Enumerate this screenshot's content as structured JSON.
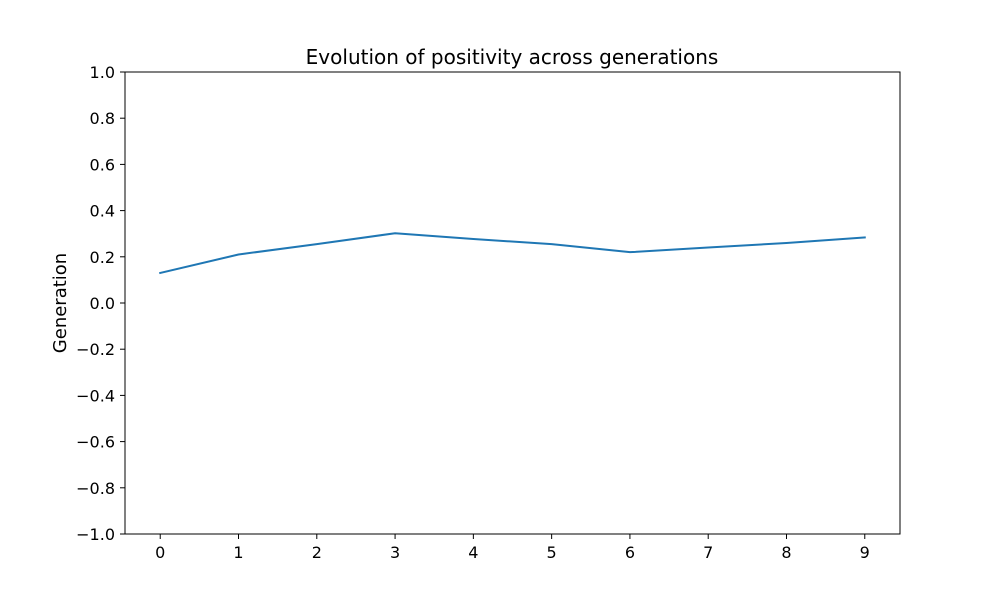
{
  "chart_data": {
    "type": "line",
    "title": "Evolution of positivity across generations",
    "xlabel": "",
    "ylabel": "Generation",
    "x": [
      0,
      1,
      2,
      3,
      4,
      5,
      6,
      7,
      8,
      9
    ],
    "series": [
      {
        "values": [
          0.13,
          0.21,
          0.255,
          0.302,
          0.277,
          0.255,
          0.22,
          0.24,
          0.26,
          0.284
        ],
        "color": "#1f77b4"
      }
    ],
    "xticks": [
      "0",
      "1",
      "2",
      "3",
      "4",
      "5",
      "6",
      "7",
      "8",
      "9"
    ],
    "yticks": [
      -1.0,
      -0.8,
      -0.6,
      -0.4,
      -0.2,
      0.0,
      0.2,
      0.4,
      0.6,
      0.8,
      1.0
    ],
    "ytick_labels": [
      "−1.0",
      "−0.8",
      "−0.6",
      "−0.4",
      "−0.2",
      "0.0",
      "0.2",
      "0.4",
      "0.6",
      "0.8",
      "1.0"
    ],
    "xlim": [
      -0.45,
      9.45
    ],
    "ylim": [
      -1.0,
      1.0
    ],
    "grid": false,
    "legend": "none"
  }
}
